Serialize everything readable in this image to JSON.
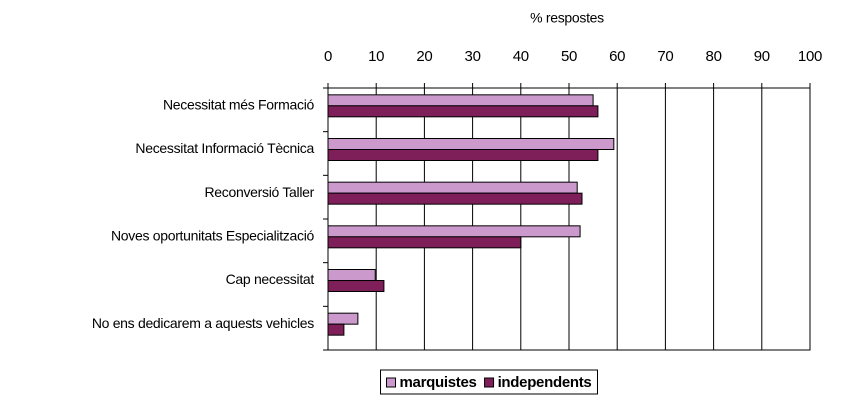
{
  "chart_data": {
    "type": "bar",
    "orientation": "horizontal",
    "x_label": "% respostes",
    "categories": [
      "Necessitat més Formació",
      "Necessitat Informació Tècnica",
      "Reconversió Taller",
      "Noves oportunitats Especialització",
      "Cap necessitat",
      "No ens dedicarem a aquests vehicles"
    ],
    "series": [
      {
        "name": "marquistes",
        "color": "#cc99cc",
        "values": [
          55,
          59.3,
          51.7,
          52.3,
          9.8,
          6.2
        ]
      },
      {
        "name": "independents",
        "color": "#7f1f5a",
        "values": [
          56,
          56,
          52.7,
          40,
          11.6,
          3.3
        ]
      }
    ],
    "xlim": [
      0,
      100
    ],
    "xticks": [
      0,
      10,
      20,
      30,
      40,
      50,
      60,
      70,
      80,
      90,
      100
    ],
    "grid": true,
    "legend": "bottom"
  }
}
